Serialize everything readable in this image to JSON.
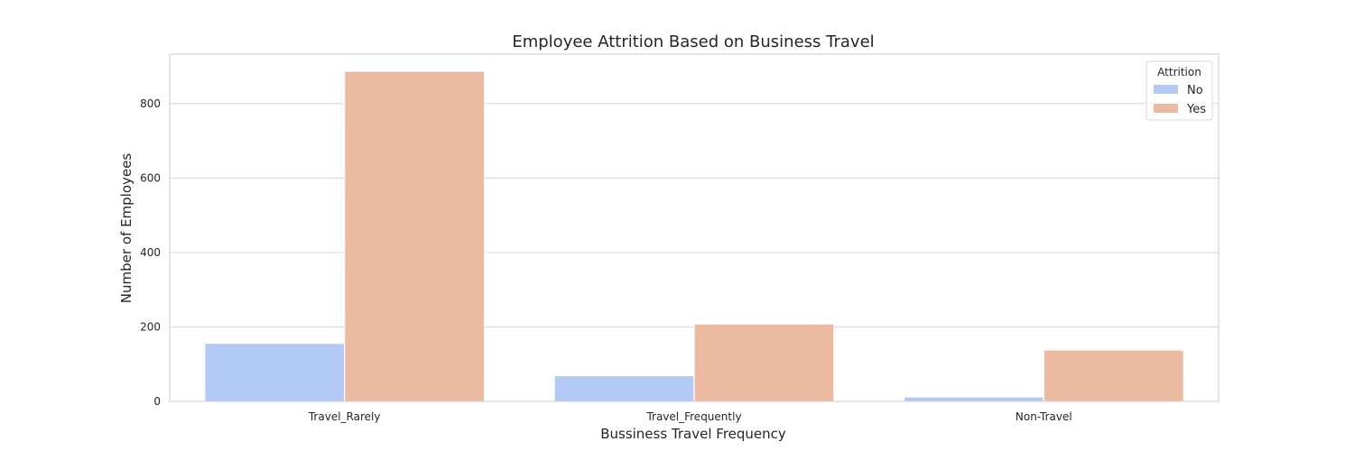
{
  "chart_data": {
    "type": "bar",
    "title": "Employee Attrition Based on Business Travel",
    "xlabel": "Bussiness Travel Frequency",
    "ylabel": "Number of Employees",
    "categories": [
      "Travel_Rarely",
      "Travel_Frequently",
      "Non-Travel"
    ],
    "series": [
      {
        "name": "No",
        "values": [
          156,
          69,
          12
        ],
        "color": "#b3c9f5"
      },
      {
        "name": "Yes",
        "values": [
          887,
          208,
          138
        ],
        "color": "#ecbaa1"
      }
    ],
    "ylim": [
      0,
      933
    ],
    "yticks": [
      0,
      200,
      400,
      600,
      800
    ],
    "grid": true,
    "legend": {
      "title": "Attrition",
      "position": "top-right"
    }
  }
}
